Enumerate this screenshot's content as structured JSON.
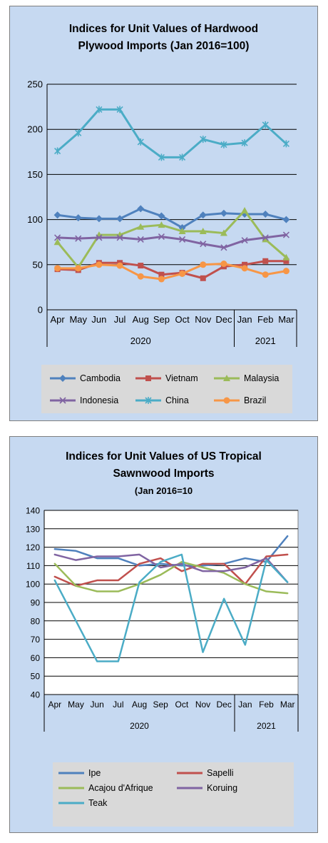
{
  "chart_data": [
    {
      "type": "line",
      "title": "Indices for Unit Values of Hardwood",
      "subtitle": "Plywood Imports (Jan 2016=100)",
      "categories": [
        "Apr",
        "May",
        "Jun",
        "Jul",
        "Aug",
        "Sep",
        "Oct",
        "Nov",
        "Dec",
        "Jan",
        "Feb",
        "Mar"
      ],
      "years": [
        {
          "label": "2020",
          "from": 0,
          "to": 8
        },
        {
          "label": "2021",
          "from": 9,
          "to": 11
        }
      ],
      "ylim": [
        0,
        250
      ],
      "yticks": [
        "0",
        "50",
        "100",
        "150",
        "200",
        "250"
      ],
      "grid": true,
      "legend_position": "bottom",
      "series": [
        {
          "name": "Cambodia",
          "color": "#4f81bd",
          "marker": "diamond",
          "values": [
            105,
            102,
            101,
            101,
            112,
            104,
            91,
            105,
            107,
            106,
            106,
            100
          ]
        },
        {
          "name": "Vietnam",
          "color": "#c0504d",
          "marker": "square",
          "values": [
            45,
            44,
            52,
            52,
            49,
            39,
            41,
            35,
            48,
            50,
            54,
            54
          ]
        },
        {
          "name": "Malaysia",
          "color": "#9bbb59",
          "marker": "triangle",
          "values": [
            75,
            47,
            83,
            83,
            92,
            94,
            87,
            87,
            85,
            110,
            78,
            58
          ]
        },
        {
          "name": "Indonesia",
          "color": "#8064a2",
          "marker": "x",
          "values": [
            80,
            79,
            80,
            80,
            78,
            81,
            78,
            73,
            69,
            77,
            80,
            83
          ]
        },
        {
          "name": "China",
          "color": "#4bacc6",
          "marker": "star",
          "values": [
            176,
            196,
            222,
            222,
            186,
            169,
            169,
            189,
            183,
            185,
            205,
            184
          ]
        },
        {
          "name": "Brazil",
          "color": "#f79646",
          "marker": "circle",
          "values": [
            46,
            46,
            50,
            49,
            37,
            34,
            40,
            50,
            51,
            46,
            39,
            43
          ]
        }
      ]
    },
    {
      "type": "line",
      "title": "Indices for Unit Values of US Tropical",
      "title2": "Sawnwood Imports",
      "subtitle": "(Jan 2016=10",
      "categories": [
        "Apr",
        "May",
        "Jun",
        "Jul",
        "Aug",
        "Sep",
        "Oct",
        "Nov",
        "Dec",
        "Jan",
        "Feb",
        "Mar"
      ],
      "years": [
        {
          "label": "2020",
          "from": 0,
          "to": 8
        },
        {
          "label": "2021",
          "from": 9,
          "to": 11
        }
      ],
      "ylim": [
        40,
        140
      ],
      "yticks": [
        "40",
        "50",
        "60",
        "70",
        "80",
        "90",
        "100",
        "110",
        "120",
        "130",
        "140"
      ],
      "grid": true,
      "legend_position": "bottom",
      "series": [
        {
          "name": "Ipe",
          "color": "#4f81bd",
          "values": [
            119,
            118,
            114,
            114,
            110,
            111,
            110,
            110,
            111,
            114,
            112,
            126
          ]
        },
        {
          "name": "Sapelli",
          "color": "#c0504d",
          "values": [
            104,
            99,
            102,
            102,
            111,
            114,
            107,
            111,
            111,
            100,
            115,
            116
          ]
        },
        {
          "name": "Acajou d'Afrique",
          "color": "#9bbb59",
          "values": [
            111,
            99,
            96,
            96,
            100,
            105,
            112,
            109,
            106,
            100,
            96,
            95
          ]
        },
        {
          "name": "Koruing",
          "color": "#8064a2",
          "values": [
            116,
            113,
            115,
            115,
            116,
            109,
            111,
            107,
            107,
            109,
            114,
            101
          ]
        },
        {
          "name": "Teak",
          "color": "#4bacc6",
          "values": [
            102,
            80,
            58,
            58,
            101,
            112,
            116,
            63,
            92,
            67,
            113,
            101
          ]
        }
      ]
    }
  ]
}
